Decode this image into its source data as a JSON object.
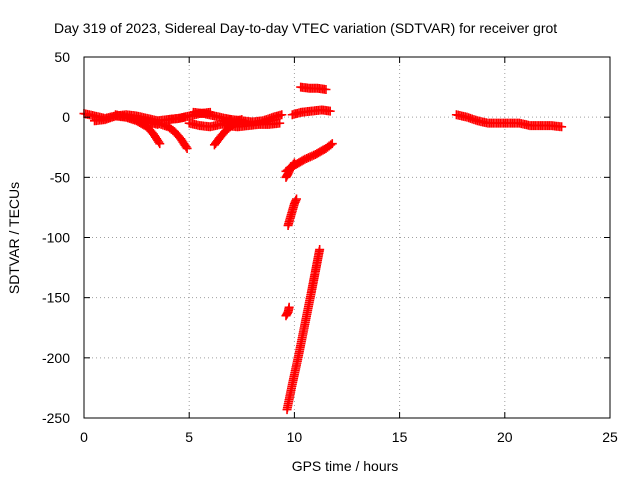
{
  "chart_data": {
    "type": "scatter",
    "title": "Day 319 of 2023, Sidereal Day-to-day VTEC variation (SDTVAR) for receiver grot",
    "xlabel": "GPS time / hours",
    "ylabel": "SDTVAR / TECUs",
    "xlim": [
      0,
      25
    ],
    "ylim": [
      -250,
      50
    ],
    "xticks": [
      0,
      5,
      10,
      15,
      20,
      25
    ],
    "yticks": [
      -250,
      -200,
      -150,
      -100,
      -50,
      0,
      50
    ],
    "grid": true,
    "marker": "plus",
    "color": "#ff0000",
    "series": [
      {
        "name": "s1",
        "x": [
          0.0,
          0.5,
          1.0,
          1.5,
          2.0,
          2.5,
          3.0,
          3.5
        ],
        "y": [
          3,
          1,
          -1,
          1,
          0,
          -2,
          -4,
          -6
        ]
      },
      {
        "name": "s2",
        "x": [
          0.5,
          1.0,
          1.5,
          2.0,
          2.5,
          3.0,
          3.5,
          4.0,
          4.5,
          4.8
        ],
        "y": [
          -3,
          -2,
          1,
          2,
          1,
          -1,
          -3,
          -2,
          -1,
          0
        ]
      },
      {
        "name": "s3",
        "x": [
          1.5,
          2.0,
          2.5,
          3.0,
          3.3,
          3.6
        ],
        "y": [
          2,
          0,
          -3,
          -8,
          -14,
          -22
        ]
      },
      {
        "name": "s4",
        "x": [
          3.0,
          3.5,
          4.0,
          4.3,
          4.6,
          4.9
        ],
        "y": [
          -3,
          -5,
          -8,
          -12,
          -18,
          -26
        ]
      },
      {
        "name": "s5",
        "x": [
          4.0,
          4.5,
          5.0,
          5.5,
          6.0
        ],
        "y": [
          -2,
          -1,
          1,
          3,
          4
        ]
      },
      {
        "name": "s6",
        "x": [
          5.2,
          5.7,
          6.2,
          6.7,
          7.0
        ],
        "y": [
          4,
          3,
          1,
          -1,
          -2
        ]
      },
      {
        "name": "s7",
        "x": [
          5.0,
          5.5,
          6.0,
          6.5,
          7.0,
          7.5
        ],
        "y": [
          -5,
          -7,
          -8,
          -6,
          -4,
          -2
        ]
      },
      {
        "name": "s8",
        "x": [
          6.2,
          6.5,
          6.8,
          7.1,
          7.4
        ],
        "y": [
          -23,
          -16,
          -10,
          -6,
          -3
        ]
      },
      {
        "name": "s9",
        "x": [
          7.0,
          7.5,
          8.0,
          8.5,
          9.0,
          9.4
        ],
        "y": [
          -2,
          -3,
          -4,
          -3,
          0,
          2
        ]
      },
      {
        "name": "s10",
        "x": [
          6.8,
          7.3,
          7.8,
          8.3,
          8.8,
          9.3
        ],
        "y": [
          -7,
          -8,
          -7,
          -6,
          -6,
          -5
        ]
      },
      {
        "name": "s11",
        "x": [
          10.3,
          10.7,
          11.1,
          11.5
        ],
        "y": [
          25,
          24,
          24,
          23
        ]
      },
      {
        "name": "s12",
        "x": [
          9.9,
          10.3,
          10.8,
          11.3,
          11.7
        ],
        "y": [
          2,
          4,
          5,
          6,
          5
        ]
      },
      {
        "name": "s13",
        "x": [
          9.6,
          10.0,
          10.5,
          11.0,
          11.5,
          11.8
        ],
        "y": [
          -45,
          -40,
          -35,
          -31,
          -26,
          -22
        ]
      },
      {
        "name": "s14",
        "x": [
          9.6,
          9.7,
          9.8,
          10.0
        ],
        "y": [
          -50,
          -47,
          -43,
          -38
        ]
      },
      {
        "name": "s15",
        "x": [
          9.7,
          9.8,
          9.9,
          10.0,
          10.1
        ],
        "y": [
          -90,
          -84,
          -78,
          -72,
          -68
        ]
      },
      {
        "name": "s16",
        "x": [
          9.6,
          9.7,
          9.75
        ],
        "y": [
          -165,
          -162,
          -158
        ]
      },
      {
        "name": "s17",
        "x": [
          9.65,
          9.9,
          10.2,
          10.5,
          10.8,
          11.0,
          11.2
        ],
        "y": [
          -243,
          -222,
          -198,
          -172,
          -146,
          -128,
          -110
        ]
      },
      {
        "name": "s18",
        "x": [
          17.7,
          18.2,
          18.7,
          19.2,
          19.7,
          20.2,
          20.7,
          21.2,
          21.7,
          22.2,
          22.7
        ],
        "y": [
          2,
          0,
          -3,
          -5,
          -5,
          -5,
          -5,
          -7,
          -7,
          -7,
          -8
        ]
      }
    ]
  }
}
